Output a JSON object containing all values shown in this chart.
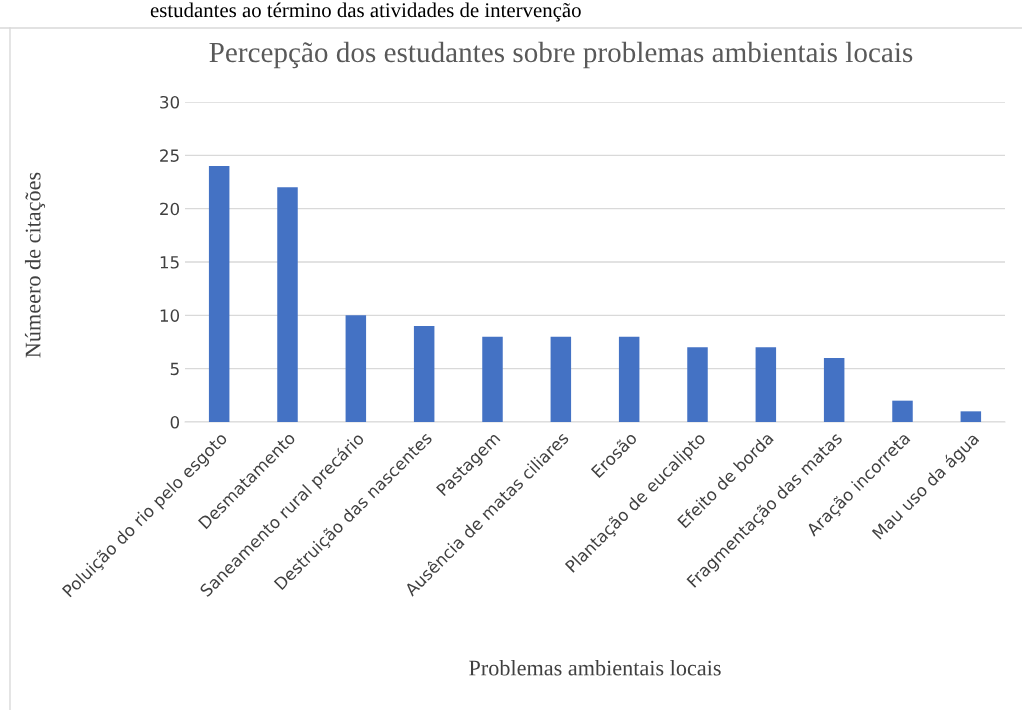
{
  "chart_data": {
    "type": "bar",
    "title": "Percepção dos estudantes sobre problemas ambientais locais",
    "xlabel": "Problemas ambientais locais",
    "ylabel": "Númeero de citações",
    "annotations": [
      "estudantes ao término das atividades de intervenção"
    ],
    "categories": [
      "Poluição do rio pelo esgoto",
      "Desmatamento",
      "Saneamento rural precário",
      "Destruição das nascentes",
      "Pastagem",
      "Ausência de matas ciliares",
      "Erosão",
      "Plantação de eucalipto",
      "Efeito de borda",
      "Fragmentação das matas",
      "Aração incorreta",
      "Mau uso da água"
    ],
    "values": [
      24,
      22,
      10,
      9,
      8,
      8,
      8,
      7,
      7,
      6,
      2,
      1
    ],
    "color": "#4472c4",
    "ylim": [
      0,
      30
    ],
    "yticks": [
      0,
      5,
      10,
      15,
      20,
      25,
      30
    ],
    "grid": "y"
  }
}
